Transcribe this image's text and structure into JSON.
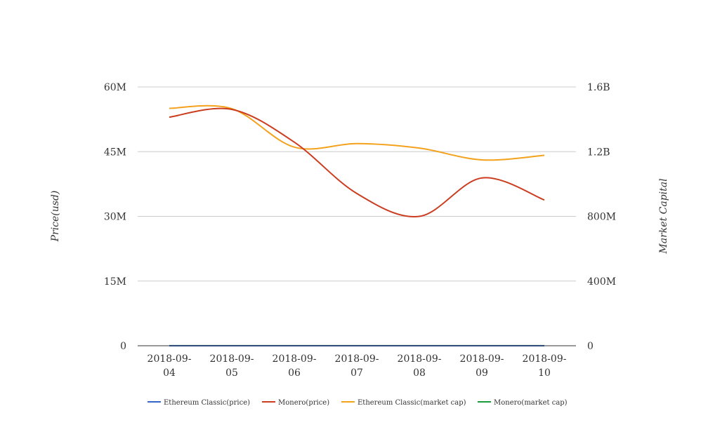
{
  "chart_data": {
    "type": "line",
    "categories": [
      "2018-09-04",
      "2018-09-05",
      "2018-09-06",
      "2018-09-07",
      "2018-09-08",
      "2018-09-09",
      "2018-09-10"
    ],
    "category_lines": [
      [
        "2018-09-",
        "04"
      ],
      [
        "2018-09-",
        "05"
      ],
      [
        "2018-09-",
        "06"
      ],
      [
        "2018-09-",
        "07"
      ],
      [
        "2018-09-",
        "08"
      ],
      [
        "2018-09-",
        "09"
      ],
      [
        "2018-09-",
        "10"
      ]
    ],
    "y_left": {
      "label": "Price(usd)",
      "range": [
        0,
        60000000
      ],
      "ticks": [
        0,
        15000000,
        30000000,
        45000000,
        60000000
      ],
      "tick_labels": [
        "0",
        "15M",
        "30M",
        "45M",
        "60M"
      ]
    },
    "y_right": {
      "label": "Market Capital",
      "range": [
        0,
        1600000000
      ],
      "ticks": [
        0,
        400000000,
        800000000,
        1200000000,
        1600000000
      ],
      "tick_labels": [
        "0",
        "400M",
        "800M",
        "1.2B",
        "1.6B"
      ]
    },
    "grid": true,
    "legend_position": "bottom",
    "series": [
      {
        "name": "Ethereum Classic(price)",
        "axis": "left",
        "color": "#3366cc",
        "values": [
          12,
          11,
          11,
          11,
          11,
          11,
          11
        ]
      },
      {
        "name": "Monero(price)",
        "axis": "left",
        "color": "#cc3d1f",
        "values": [
          53000000,
          54800000,
          47200000,
          35300000,
          30000000,
          38900000,
          33800000
        ]
      },
      {
        "name": "Ethereum Classic(market cap)",
        "axis": "right",
        "color": "#f4a11c",
        "values": [
          1468000000,
          1466000000,
          1228000000,
          1250000000,
          1222000000,
          1149000000,
          1177000000
        ]
      },
      {
        "name": "Monero(market cap)",
        "axis": "right",
        "color": "#1a9a3a",
        "values": [
          700000,
          700000,
          600000,
          600000,
          500000,
          600000,
          500000
        ]
      }
    ]
  }
}
